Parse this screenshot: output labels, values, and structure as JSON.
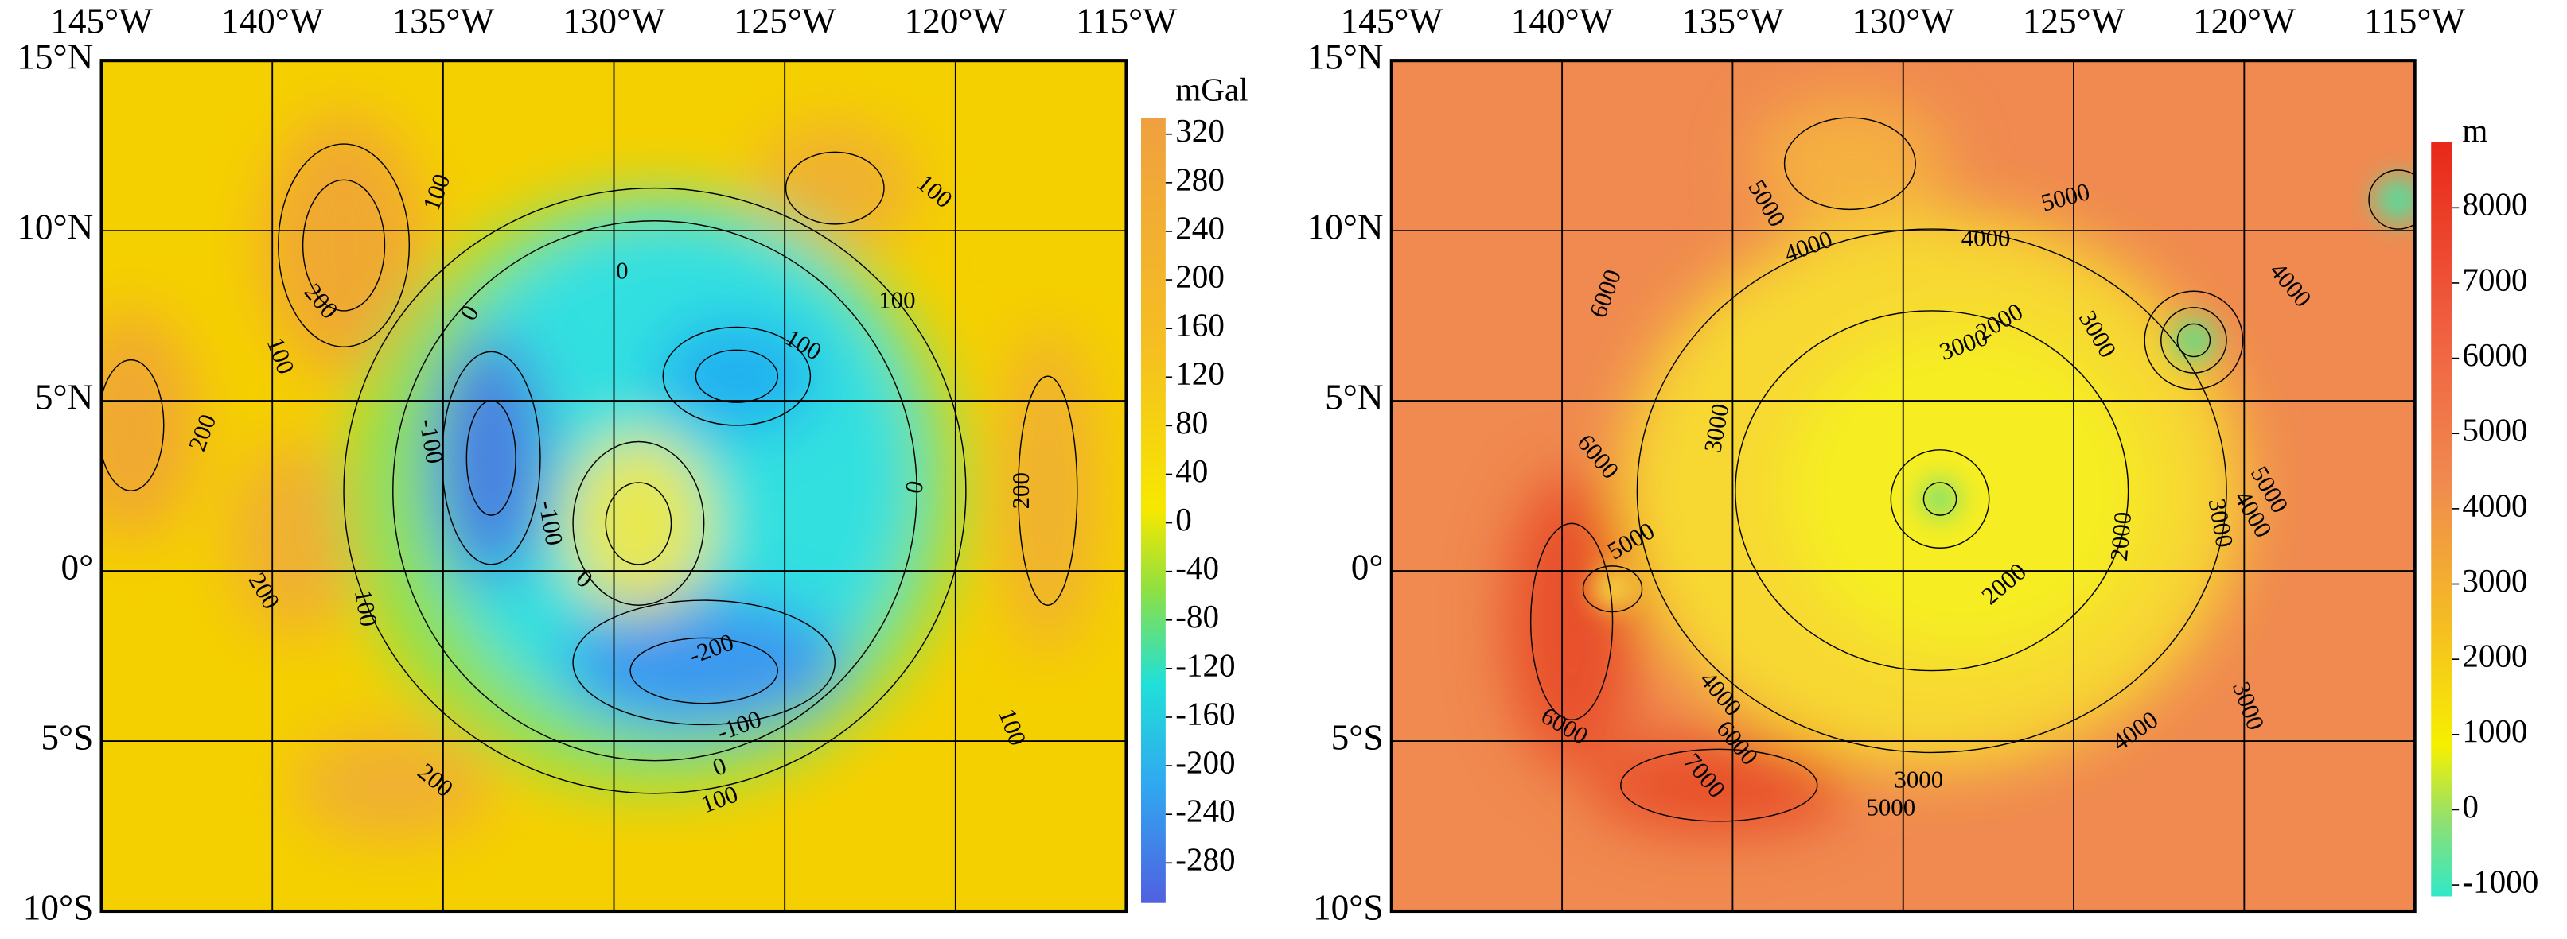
{
  "panels": [
    {
      "unit": "mGal",
      "lon_labels": [
        "145°W",
        "140°W",
        "135°W",
        "130°W",
        "125°W",
        "120°W",
        "115°W"
      ],
      "lat_labels": [
        "15°N",
        "10°N",
        "5°N",
        "0°",
        "5°S",
        "10°S"
      ],
      "colorbar_ticks": [
        320,
        280,
        240,
        200,
        160,
        120,
        80,
        40,
        0,
        -40,
        -80,
        -120,
        -160,
        -200,
        -240,
        -280
      ],
      "contour_labels": [
        100,
        200,
        100,
        0,
        0,
        100,
        100,
        100,
        200,
        -100,
        -100,
        0,
        200,
        100,
        -200,
        -100,
        0,
        100,
        200,
        200,
        0,
        100
      ]
    },
    {
      "unit": "m",
      "lon_labels": [
        "145°W",
        "140°W",
        "135°W",
        "130°W",
        "125°W",
        "120°W",
        "115°W"
      ],
      "lat_labels": [
        "15°N",
        "10°N",
        "5°N",
        "0°",
        "5°S",
        "10°S"
      ],
      "colorbar_ticks": [
        8000,
        7000,
        6000,
        5000,
        4000,
        3000,
        2000,
        1000,
        0,
        -1000
      ],
      "contour_labels": [
        5000,
        4000,
        5000,
        4000,
        6000,
        2000,
        3000,
        3000,
        4000,
        3000,
        6000,
        5000,
        3000,
        4000,
        5000,
        2000,
        2000,
        4000,
        6000,
        6000,
        7000,
        3000,
        5000,
        4000,
        3000
      ]
    }
  ]
}
